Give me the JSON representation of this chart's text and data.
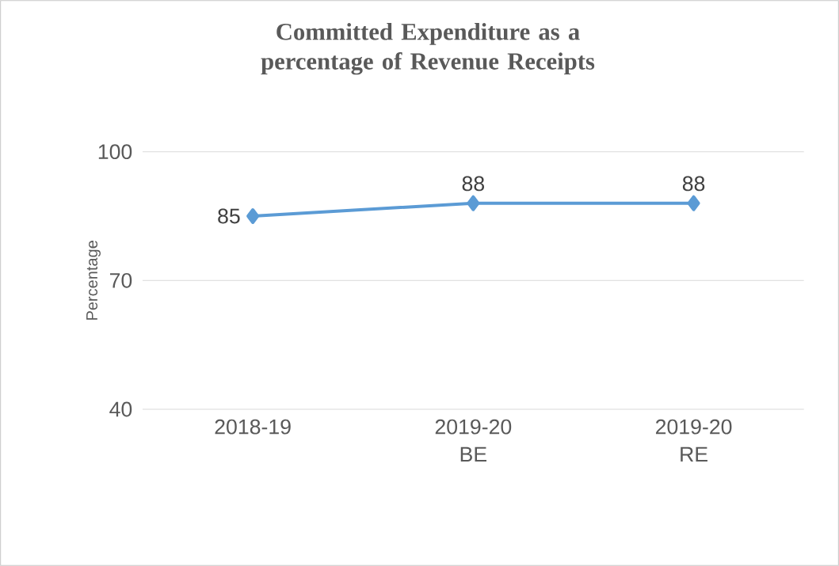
{
  "chart_data": {
    "type": "line",
    "title": "Committed Expenditure as a percentage of Revenue Receipts",
    "ylabel": "Percentage",
    "categories": [
      "2018-19",
      "2019-20 BE",
      "2019-20 RE"
    ],
    "values": [
      85,
      88,
      88
    ],
    "color": "#5b9bd5",
    "marker": "diamond",
    "line_style": "solid",
    "ylim": [
      40,
      100
    ],
    "yticks": [
      40,
      70,
      100
    ],
    "grid": "y",
    "data_labels": true
  }
}
